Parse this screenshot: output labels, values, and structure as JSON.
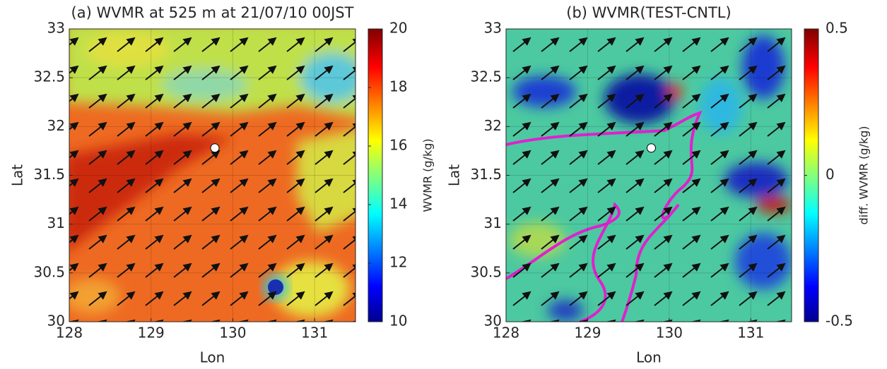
{
  "chart_data": [
    {
      "type": "map",
      "title": "(a) WVMR at 525 m at 21/07/10 00JST",
      "xlabel": "Lon",
      "ylabel": "Lat",
      "xlim": [
        128,
        131.5
      ],
      "ylim": [
        30,
        33
      ],
      "xticks": [
        128,
        129,
        130,
        131
      ],
      "yticks": [
        30,
        30.5,
        31,
        31.5,
        32,
        32.5,
        33
      ],
      "grid": true,
      "clim": [
        10,
        20
      ],
      "cticks": [
        10,
        12,
        14,
        16,
        18,
        20
      ],
      "colorbar_label": "WVMR (g/kg)",
      "points": {
        "x": [
          129.78
        ],
        "y": [
          31.78
        ]
      }
    },
    {
      "type": "map",
      "title": "(b) WVMR(TEST-CNTL)",
      "xlabel": "Lon",
      "ylabel": "Lat",
      "xlim": [
        128,
        131.5
      ],
      "ylim": [
        30,
        33
      ],
      "xticks": [
        128,
        129,
        130,
        131
      ],
      "yticks": [
        30,
        30.5,
        31,
        31.5,
        32,
        32.5,
        33
      ],
      "grid": true,
      "clim": [
        -0.5,
        0.5
      ],
      "cticks": [
        -0.5,
        0,
        0.5
      ],
      "colorbar_label": "diff. WVMR (g/kg)",
      "points": {
        "x": [
          129.78
        ],
        "y": [
          31.78
        ]
      }
    }
  ]
}
